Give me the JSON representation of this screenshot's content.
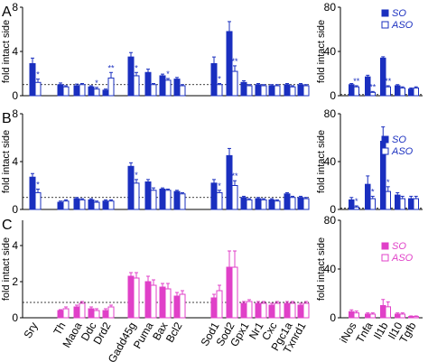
{
  "panel_letters": [
    "A",
    "B",
    "C"
  ],
  "ylabel": "fold intact side",
  "legend_labels": [
    "SO",
    "ASO"
  ],
  "colors": {
    "blue": "#1a2fbf",
    "magenta": "#e040c8",
    "axis": "#000000"
  },
  "chart_data": [
    {
      "type": "bar",
      "panel": "A",
      "group": "left",
      "categories": [
        "Sry",
        "Th",
        "Maoa",
        "Ddc",
        "Drd2",
        "Gadd45g",
        "Puma",
        "Bax",
        "Bcl2",
        "Sod1",
        "Sod2",
        "Gpx1",
        "Nr1",
        "Cxc",
        "Pgc1a",
        "Txnrd1"
      ],
      "series": [
        {
          "name": "SO",
          "values": [
            2.9,
            1.0,
            0.9,
            0.8,
            0.5,
            3.5,
            2.1,
            1.8,
            1.5,
            2.9,
            5.8,
            1.2,
            1.0,
            0.9,
            1.0,
            1.0
          ],
          "errors": [
            0.5,
            0.15,
            0.15,
            0.1,
            0.1,
            0.4,
            0.3,
            0.15,
            0.15,
            0.6,
            0.9,
            0.15,
            0.1,
            0.1,
            0.1,
            0.1
          ]
        },
        {
          "name": "ASO",
          "values": [
            1.2,
            0.8,
            1.0,
            0.6,
            1.6,
            1.8,
            1.0,
            1.4,
            0.9,
            1.0,
            2.2,
            0.9,
            0.9,
            0.9,
            0.8,
            0.9
          ],
          "errors": [
            0.3,
            0.1,
            0.1,
            0.15,
            0.5,
            0.3,
            0.1,
            0.15,
            0.1,
            0.1,
            0.5,
            0.1,
            0.1,
            0.1,
            0.1,
            0.1
          ]
        }
      ],
      "stars": [
        [
          "Sry",
          "*"
        ],
        [
          "Ddc",
          "*"
        ],
        [
          "Drd2",
          "**"
        ],
        [
          "Gadd45g",
          "*"
        ],
        [
          "Bax",
          "*"
        ],
        [
          "Sod1",
          "*"
        ],
        [
          "Sod2",
          "**"
        ]
      ],
      "yticks": [
        0,
        4,
        8
      ],
      "ylim": [
        0,
        8
      ],
      "dashed_line": 1
    },
    {
      "type": "bar",
      "panel": "A",
      "group": "right",
      "categories": [
        "iNos",
        "Tnfa",
        "Il1b",
        "Il10",
        "Tgfb"
      ],
      "series": [
        {
          "name": "SO",
          "values": [
            10,
            17,
            34,
            9,
            6
          ],
          "errors": [
            1,
            1.5,
            1.2,
            1,
            1
          ]
        },
        {
          "name": "ASO",
          "values": [
            8,
            3,
            8,
            7,
            7
          ],
          "errors": [
            1,
            0.8,
            1,
            1,
            1
          ]
        }
      ],
      "stars": [
        [
          "iNos",
          "**"
        ],
        [
          "Tnfa",
          "**"
        ],
        [
          "Il1b",
          "**"
        ]
      ],
      "yticks": [
        0,
        40,
        80
      ],
      "ylim": [
        0,
        80
      ],
      "dashed_line": 1
    },
    {
      "type": "bar",
      "panel": "B",
      "group": "left",
      "categories": [
        "Sry",
        "Th",
        "Maoa",
        "Ddc",
        "Drd2",
        "Gadd45g",
        "Puma",
        "Bax",
        "Bcl2",
        "Sod1",
        "Sod2",
        "Gpx1",
        "Nr1",
        "Cxc",
        "Pgc1a",
        "Txnrd1"
      ],
      "series": [
        {
          "name": "SO",
          "values": [
            2.7,
            0.6,
            0.9,
            0.8,
            0.7,
            3.6,
            2.3,
            1.7,
            1.5,
            2.2,
            4.5,
            1.0,
            0.9,
            0.8,
            1.3,
            1.0
          ],
          "errors": [
            0.3,
            0.1,
            0.1,
            0.1,
            0.1,
            0.3,
            0.2,
            0.1,
            0.1,
            0.3,
            0.6,
            0.1,
            0.1,
            0.1,
            0.1,
            0.1
          ]
        },
        {
          "name": "ASO",
          "values": [
            1.4,
            0.7,
            0.8,
            0.6,
            0.7,
            2.2,
            1.6,
            1.6,
            1.3,
            1.4,
            2.0,
            0.8,
            0.8,
            0.7,
            1.0,
            0.9
          ],
          "errors": [
            0.3,
            0.1,
            0.1,
            0.1,
            0.1,
            0.3,
            0.2,
            0.1,
            0.1,
            0.2,
            0.4,
            0.1,
            0.1,
            0.1,
            0.1,
            0.1
          ]
        }
      ],
      "stars": [
        [
          "Sry",
          "*"
        ],
        [
          "Gadd45g",
          "*"
        ],
        [
          "Sod1",
          "*"
        ],
        [
          "Sod2",
          "**"
        ]
      ],
      "yticks": [
        0,
        4,
        8
      ],
      "ylim": [
        0,
        8
      ],
      "dashed_line": 1
    },
    {
      "type": "bar",
      "panel": "B",
      "group": "right",
      "categories": [
        "iNos",
        "Tnfa",
        "Il1b",
        "Il10",
        "Tgfb"
      ],
      "series": [
        {
          "name": "SO",
          "values": [
            8,
            21,
            57,
            12,
            9
          ],
          "errors": [
            2,
            7,
            12,
            2,
            2
          ]
        },
        {
          "name": "ASO",
          "values": [
            2,
            9,
            15,
            9,
            9
          ],
          "errors": [
            1,
            2,
            4,
            2,
            2
          ]
        }
      ],
      "stars": [
        [
          "iNos",
          "*"
        ],
        [
          "Tnfa",
          "*"
        ],
        [
          "Il1b",
          "*"
        ]
      ],
      "yticks": [
        0,
        40,
        80
      ],
      "ylim": [
        0,
        80
      ],
      "dashed_line": 1
    },
    {
      "type": "bar",
      "panel": "C",
      "group": "left",
      "categories": [
        "Sry",
        "Th",
        "Maoa",
        "Ddc",
        "Drd2",
        "Gadd45g",
        "Puma",
        "Bax",
        "Bcl2",
        "Sod1",
        "Sod2",
        "Gpx1",
        "Nr1",
        "Cxc",
        "Pgc1a",
        "Txnrd1"
      ],
      "series": [
        {
          "name": "SO",
          "values": [
            0,
            0.4,
            0.6,
            0.5,
            0.4,
            2.3,
            2.0,
            1.7,
            1.2,
            1.1,
            2.8,
            0.8,
            0.8,
            0.7,
            0.8,
            0.7
          ],
          "errors": [
            0,
            0.05,
            0.1,
            0.1,
            0.1,
            0.2,
            0.3,
            0.2,
            0.2,
            0.2,
            0.9,
            0.1,
            0.1,
            0.1,
            0.1,
            0.1
          ]
        },
        {
          "name": "ASO",
          "values": [
            0,
            0.5,
            0.8,
            0.4,
            0.6,
            2.2,
            1.8,
            1.6,
            1.3,
            1.5,
            2.8,
            0.9,
            0.8,
            0.8,
            0.8,
            0.8
          ],
          "errors": [
            0,
            0.1,
            0.1,
            0.1,
            0.1,
            0.3,
            0.3,
            0.3,
            0.2,
            0.3,
            0.9,
            0.1,
            0.1,
            0.1,
            0.1,
            0.1
          ]
        }
      ],
      "stars": [],
      "yticks": [
        0,
        2,
        4
      ],
      "ylim": [
        0,
        5.4
      ],
      "dashed_line": 0.85
    },
    {
      "type": "bar",
      "panel": "C",
      "group": "right",
      "categories": [
        "iNos",
        "Tnfa",
        "Il1b",
        "Il10",
        "Tgfb"
      ],
      "series": [
        {
          "name": "SO",
          "values": [
            5,
            3,
            10,
            3,
            1
          ],
          "errors": [
            1.5,
            1,
            5,
            1,
            0.5
          ]
        },
        {
          "name": "ASO",
          "values": [
            4,
            3,
            9,
            3,
            1
          ],
          "errors": [
            1.5,
            1,
            4,
            1,
            0.5
          ]
        }
      ],
      "stars": [],
      "yticks": [
        0,
        40,
        80
      ],
      "ylim": [
        0,
        80
      ],
      "dashed_line": null
    }
  ]
}
